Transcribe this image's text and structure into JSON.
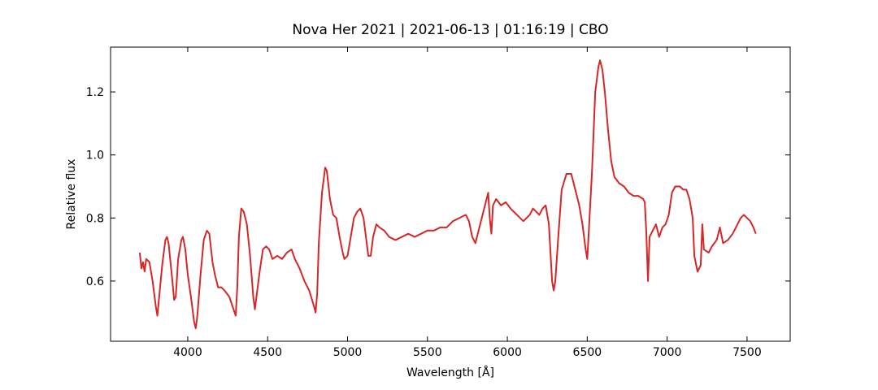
{
  "chart_data": {
    "type": "line",
    "title": "Nova Her 2021 | 2021-06-13 | 01:16:19 | CBO",
    "xlabel": "Wavelength [Å]",
    "ylabel": "Relative flux",
    "color": "#d62728",
    "xlim": [
      3517,
      7770
    ],
    "ylim": [
      0.409,
      1.342
    ],
    "xticks": [
      4000,
      4500,
      5000,
      5500,
      6000,
      6500,
      7000,
      7500
    ],
    "yticks": [
      0.6,
      0.8,
      {
        "value": 1,
        "label": "1.0"
      },
      1.2
    ],
    "x": [
      3700,
      3710,
      3720,
      3730,
      3740,
      3760,
      3780,
      3800,
      3810,
      3825,
      3840,
      3860,
      3870,
      3880,
      3900,
      3915,
      3925,
      3940,
      3960,
      3970,
      3985,
      4000,
      4020,
      4040,
      4050,
      4060,
      4080,
      4100,
      4120,
      4135,
      4155,
      4170,
      4190,
      4210,
      4230,
      4260,
      4280,
      4300,
      4310,
      4320,
      4335,
      4350,
      4370,
      4390,
      4410,
      4420,
      4430,
      4450,
      4470,
      4490,
      4510,
      4530,
      4560,
      4590,
      4620,
      4650,
      4670,
      4700,
      4730,
      4760,
      4790,
      4800,
      4810,
      4820,
      4840,
      4860,
      4870,
      4890,
      4910,
      4930,
      4950,
      4970,
      4980,
      5000,
      5020,
      5040,
      5060,
      5080,
      5100,
      5120,
      5130,
      5145,
      5160,
      5180,
      5200,
      5230,
      5260,
      5300,
      5340,
      5380,
      5420,
      5460,
      5500,
      5540,
      5580,
      5620,
      5660,
      5700,
      5740,
      5760,
      5780,
      5800,
      5820,
      5850,
      5870,
      5880,
      5890,
      5900,
      5910,
      5930,
      5960,
      5990,
      6020,
      6060,
      6100,
      6120,
      6140,
      6160,
      6180,
      6200,
      6220,
      6240,
      6260,
      6280,
      6290,
      6300,
      6320,
      6340,
      6370,
      6400,
      6420,
      6450,
      6470,
      6490,
      6500,
      6510,
      6530,
      6550,
      6570,
      6580,
      6595,
      6610,
      6630,
      6650,
      6670,
      6700,
      6730,
      6760,
      6790,
      6820,
      6850,
      6860,
      6870,
      6880,
      6890,
      6910,
      6930,
      6950,
      6970,
      6990,
      7010,
      7030,
      7050,
      7080,
      7100,
      7120,
      7140,
      7160,
      7170,
      7190,
      7210,
      7220,
      7230,
      7260,
      7280,
      7310,
      7330,
      7350,
      7380,
      7410,
      7440,
      7460,
      7480,
      7500,
      7520,
      7540,
      7555
    ],
    "values": [
      0.69,
      0.64,
      0.66,
      0.63,
      0.67,
      0.66,
      0.6,
      0.52,
      0.49,
      0.57,
      0.65,
      0.73,
      0.74,
      0.72,
      0.62,
      0.54,
      0.55,
      0.67,
      0.73,
      0.74,
      0.7,
      0.62,
      0.55,
      0.47,
      0.45,
      0.49,
      0.62,
      0.73,
      0.76,
      0.75,
      0.66,
      0.62,
      0.58,
      0.58,
      0.57,
      0.55,
      0.52,
      0.49,
      0.58,
      0.74,
      0.83,
      0.82,
      0.78,
      0.68,
      0.55,
      0.51,
      0.55,
      0.63,
      0.7,
      0.71,
      0.7,
      0.67,
      0.68,
      0.67,
      0.69,
      0.7,
      0.67,
      0.64,
      0.6,
      0.57,
      0.52,
      0.5,
      0.56,
      0.72,
      0.88,
      0.96,
      0.95,
      0.86,
      0.81,
      0.8,
      0.74,
      0.69,
      0.67,
      0.68,
      0.74,
      0.8,
      0.82,
      0.83,
      0.8,
      0.72,
      0.68,
      0.68,
      0.74,
      0.78,
      0.77,
      0.76,
      0.74,
      0.73,
      0.74,
      0.75,
      0.74,
      0.75,
      0.76,
      0.76,
      0.77,
      0.77,
      0.79,
      0.8,
      0.81,
      0.79,
      0.74,
      0.72,
      0.76,
      0.82,
      0.86,
      0.88,
      0.8,
      0.75,
      0.84,
      0.86,
      0.84,
      0.85,
      0.83,
      0.81,
      0.79,
      0.8,
      0.81,
      0.83,
      0.82,
      0.81,
      0.83,
      0.84,
      0.78,
      0.6,
      0.57,
      0.6,
      0.75,
      0.89,
      0.94,
      0.94,
      0.9,
      0.84,
      0.78,
      0.7,
      0.67,
      0.76,
      0.95,
      1.2,
      1.28,
      1.3,
      1.27,
      1.2,
      1.08,
      0.98,
      0.93,
      0.91,
      0.9,
      0.88,
      0.87,
      0.87,
      0.86,
      0.85,
      0.75,
      0.6,
      0.74,
      0.76,
      0.78,
      0.74,
      0.77,
      0.78,
      0.81,
      0.88,
      0.9,
      0.9,
      0.89,
      0.89,
      0.86,
      0.8,
      0.68,
      0.63,
      0.65,
      0.78,
      0.7,
      0.69,
      0.71,
      0.73,
      0.77,
      0.72,
      0.73,
      0.75,
      0.78,
      0.8,
      0.81,
      0.8,
      0.79,
      0.77,
      0.75
    ]
  }
}
